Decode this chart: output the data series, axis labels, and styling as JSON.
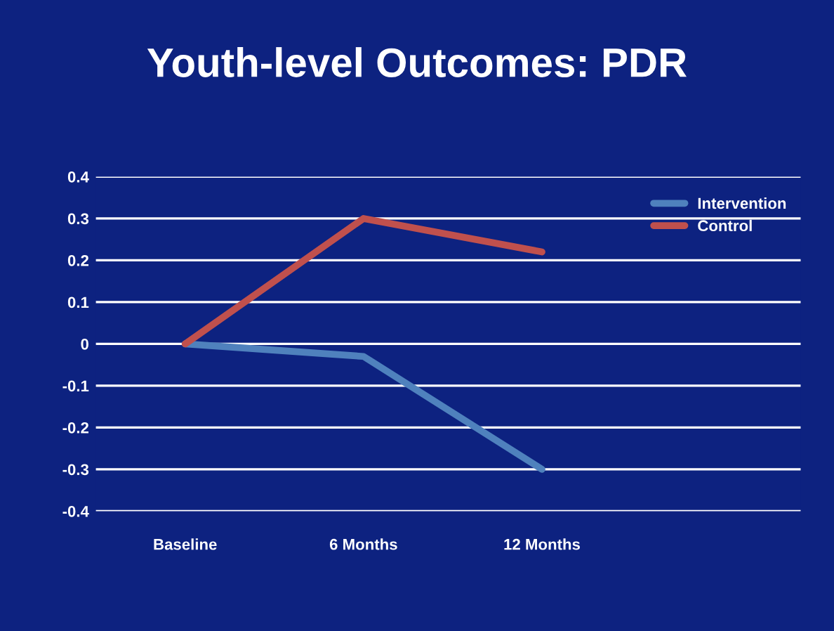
{
  "chart_data": {
    "type": "line",
    "title": "Youth-level Outcomes: PDR",
    "categories": [
      "Baseline",
      "6 Months",
      "12 Months"
    ],
    "series": [
      {
        "name": "Intervention",
        "color": "#4f81bd",
        "values": [
          0,
          -0.03,
          -0.3
        ]
      },
      {
        "name": "Control",
        "color": "#c0504d",
        "values": [
          0,
          0.3,
          0.22
        ]
      }
    ],
    "ylim": [
      -0.4,
      0.4
    ],
    "yticks": [
      -0.4,
      -0.3,
      -0.2,
      -0.1,
      0,
      0.1,
      0.2,
      0.3,
      0.4
    ],
    "grid": "y",
    "legend": "top right",
    "marker": "none",
    "line_style": "solid"
  }
}
